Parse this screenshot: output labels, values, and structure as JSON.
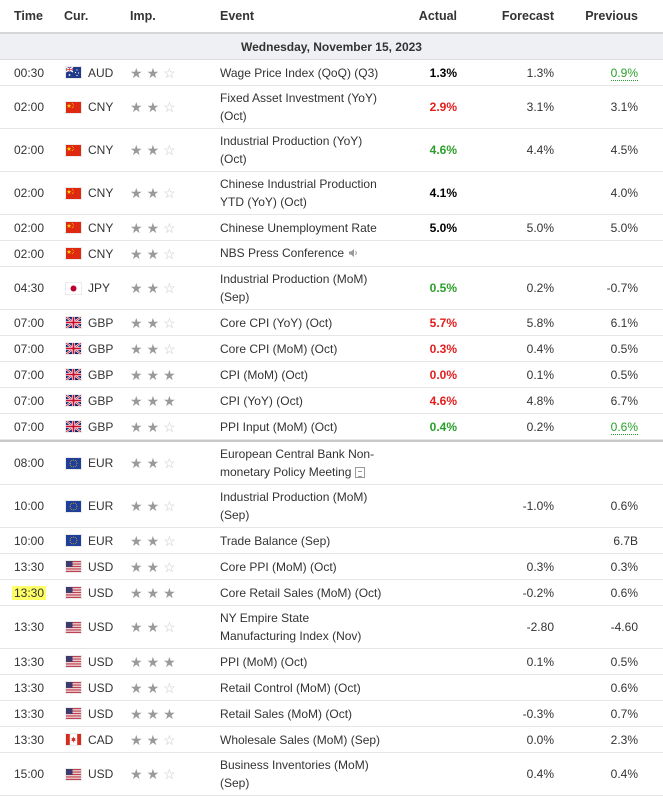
{
  "header": {
    "time": "Time",
    "cur": "Cur.",
    "imp": "Imp.",
    "event": "Event",
    "actual": "Actual",
    "forecast": "Forecast",
    "previous": "Previous"
  },
  "date": "Wednesday, November 15, 2023",
  "colors": {
    "green": "#2aa02a",
    "red": "#e41d1d",
    "highlight": "#ffff66"
  },
  "rows": [
    {
      "time": "00:30",
      "cur": "AUD",
      "flag": "au",
      "imp": 2,
      "event": "Wage Price Index (QoQ) (Q3)",
      "actual": "1.3%",
      "actual_color": "black",
      "forecast": "1.3%",
      "previous": "0.9%",
      "previous_color": "green"
    },
    {
      "time": "02:00",
      "cur": "CNY",
      "flag": "cn",
      "imp": 2,
      "event": "Fixed Asset Investment (YoY) (Oct)",
      "actual": "2.9%",
      "actual_color": "red",
      "forecast": "3.1%",
      "previous": "3.1%"
    },
    {
      "time": "02:00",
      "cur": "CNY",
      "flag": "cn",
      "imp": 2,
      "event": "Industrial Production (YoY) (Oct)",
      "actual": "4.6%",
      "actual_color": "green",
      "forecast": "4.4%",
      "previous": "4.5%"
    },
    {
      "time": "02:00",
      "cur": "CNY",
      "flag": "cn",
      "imp": 2,
      "event": "Chinese Industrial Production YTD (YoY) (Oct)",
      "actual": "4.1%",
      "actual_color": "black",
      "forecast": "",
      "previous": "4.0%"
    },
    {
      "time": "02:00",
      "cur": "CNY",
      "flag": "cn",
      "imp": 2,
      "event": "Chinese Unemployment Rate",
      "actual": "5.0%",
      "actual_color": "black",
      "forecast": "5.0%",
      "previous": "5.0%"
    },
    {
      "time": "02:00",
      "cur": "CNY",
      "flag": "cn",
      "imp": 2,
      "event": "NBS Press Conference",
      "actual": "",
      "forecast": "",
      "previous": "",
      "icon": "speaker-icon"
    },
    {
      "time": "04:30",
      "cur": "JPY",
      "flag": "jp",
      "imp": 2,
      "event": "Industrial Production (MoM) (Sep)",
      "actual": "0.5%",
      "actual_color": "green",
      "forecast": "0.2%",
      "previous": "-0.7%"
    },
    {
      "time": "07:00",
      "cur": "GBP",
      "flag": "gb",
      "imp": 2,
      "event": "Core CPI (YoY) (Oct)",
      "actual": "5.7%",
      "actual_color": "red",
      "forecast": "5.8%",
      "previous": "6.1%"
    },
    {
      "time": "07:00",
      "cur": "GBP",
      "flag": "gb",
      "imp": 2,
      "event": "Core CPI (MoM) (Oct)",
      "actual": "0.3%",
      "actual_color": "red",
      "forecast": "0.4%",
      "previous": "0.5%"
    },
    {
      "time": "07:00",
      "cur": "GBP",
      "flag": "gb",
      "imp": 3,
      "event": "CPI (MoM) (Oct)",
      "actual": "0.0%",
      "actual_color": "red",
      "forecast": "0.1%",
      "previous": "0.5%"
    },
    {
      "time": "07:00",
      "cur": "GBP",
      "flag": "gb",
      "imp": 3,
      "event": "CPI (YoY) (Oct)",
      "actual": "4.6%",
      "actual_color": "red",
      "forecast": "4.8%",
      "previous": "6.7%"
    },
    {
      "time": "07:00",
      "cur": "GBP",
      "flag": "gb",
      "imp": 2,
      "event": "PPI Input (MoM) (Oct)",
      "actual": "0.4%",
      "actual_color": "green",
      "forecast": "0.2%",
      "previous": "0.6%",
      "previous_color": "green"
    },
    {
      "time": "08:00",
      "cur": "EUR",
      "flag": "eu",
      "imp": 2,
      "event": "European Central Bank Non-monetary Policy Meeting",
      "actual": "",
      "forecast": "",
      "previous": "",
      "icon": "document-icon",
      "sep": true
    },
    {
      "time": "10:00",
      "cur": "EUR",
      "flag": "eu",
      "imp": 2,
      "event": "Industrial Production (MoM) (Sep)",
      "actual": "",
      "forecast": "-1.0%",
      "previous": "0.6%"
    },
    {
      "time": "10:00",
      "cur": "EUR",
      "flag": "eu",
      "imp": 2,
      "event": "Trade Balance (Sep)",
      "actual": "",
      "forecast": "",
      "previous": "6.7B"
    },
    {
      "time": "13:30",
      "cur": "USD",
      "flag": "us",
      "imp": 2,
      "event": "Core PPI (MoM) (Oct)",
      "actual": "",
      "forecast": "0.3%",
      "previous": "0.3%"
    },
    {
      "time": "13:30",
      "cur": "USD",
      "flag": "us",
      "imp": 3,
      "event": "Core Retail Sales (MoM) (Oct)",
      "actual": "",
      "forecast": "-0.2%",
      "previous": "0.6%",
      "highlight": true
    },
    {
      "time": "13:30",
      "cur": "USD",
      "flag": "us",
      "imp": 2,
      "event": "NY Empire State Manufacturing Index (Nov)",
      "actual": "",
      "forecast": "-2.80",
      "previous": "-4.60"
    },
    {
      "time": "13:30",
      "cur": "USD",
      "flag": "us",
      "imp": 3,
      "event": "PPI (MoM) (Oct)",
      "actual": "",
      "forecast": "0.1%",
      "previous": "0.5%"
    },
    {
      "time": "13:30",
      "cur": "USD",
      "flag": "us",
      "imp": 2,
      "event": "Retail Control (MoM) (Oct)",
      "actual": "",
      "forecast": "",
      "previous": "0.6%"
    },
    {
      "time": "13:30",
      "cur": "USD",
      "flag": "us",
      "imp": 3,
      "event": "Retail Sales (MoM) (Oct)",
      "actual": "",
      "forecast": "-0.3%",
      "previous": "0.7%"
    },
    {
      "time": "13:30",
      "cur": "CAD",
      "flag": "ca",
      "imp": 2,
      "event": "Wholesale Sales (MoM) (Sep)",
      "actual": "",
      "forecast": "0.0%",
      "previous": "2.3%"
    },
    {
      "time": "15:00",
      "cur": "USD",
      "flag": "us",
      "imp": 2,
      "event": "Business Inventories (MoM) (Sep)",
      "actual": "",
      "forecast": "0.4%",
      "previous": "0.4%"
    }
  ]
}
